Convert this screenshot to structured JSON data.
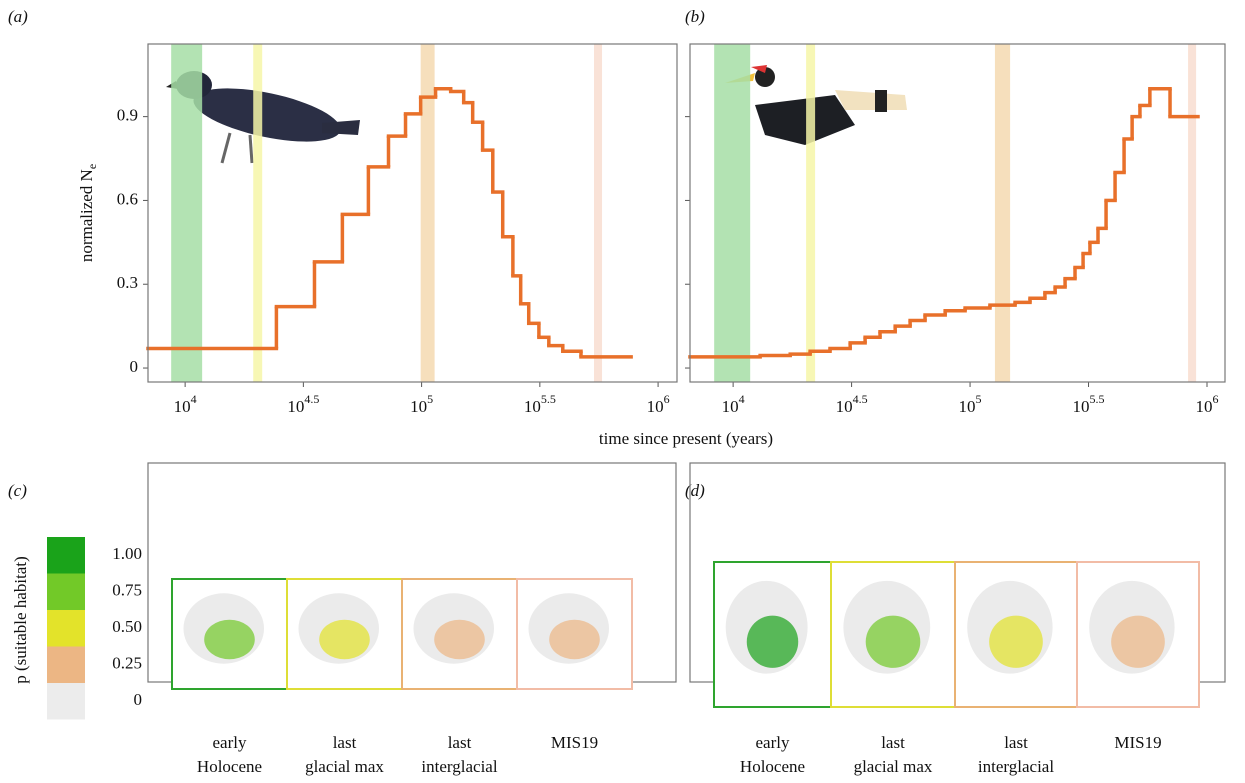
{
  "chart_data": [
    {
      "type": "line",
      "panel_label": "(a)",
      "ylabel": "normalized N_e",
      "xlabel": "time since present (years)",
      "log_x": true,
      "step": true,
      "xlim": [
        3.843,
        6.08
      ],
      "ylim": [
        -0.05,
        1.16
      ],
      "xticks": [
        {
          "value": 4,
          "label": "10^4"
        },
        {
          "value": 4.5,
          "label": "10^4.5"
        },
        {
          "value": 5,
          "label": "10^5"
        },
        {
          "value": 5.5,
          "label": "10^5.5"
        },
        {
          "value": 6,
          "label": "10^6"
        }
      ],
      "yticks": [
        0,
        0.3,
        0.6,
        0.9
      ],
      "bands": [
        {
          "x0": 3.941,
          "x1": 4.072,
          "color": "#a6dea6"
        },
        {
          "x0": 4.288,
          "x1": 4.326,
          "color": "#f6f6a8"
        },
        {
          "x0": 4.996,
          "x1": 5.055,
          "color": "#f4d9b0"
        },
        {
          "x0": 5.729,
          "x1": 5.763,
          "color": "#f8ddd0"
        }
      ],
      "x": [
        3.843,
        4.386,
        4.547,
        4.665,
        4.775,
        4.86,
        4.932,
        4.996,
        5.059,
        5.123,
        5.178,
        5.216,
        5.258,
        5.301,
        5.343,
        5.386,
        5.419,
        5.453,
        5.496,
        5.538,
        5.597,
        5.674,
        5.886
      ],
      "series": [
        {
          "color": "#e8702a",
          "values": [
            0.07,
            0.22,
            0.38,
            0.55,
            0.72,
            0.83,
            0.91,
            0.97,
            1.0,
            0.99,
            0.95,
            0.88,
            0.78,
            0.63,
            0.47,
            0.33,
            0.23,
            0.16,
            0.11,
            0.08,
            0.06,
            0.04,
            0.04
          ]
        }
      ]
    },
    {
      "type": "line",
      "panel_label": "(b)",
      "log_x": true,
      "step": true,
      "xlim": [
        3.818,
        6.076
      ],
      "ylim": [
        -0.05,
        1.16
      ],
      "xticks": [
        {
          "value": 4,
          "label": "10^4"
        },
        {
          "value": 4.5,
          "label": "10^4.5"
        },
        {
          "value": 5,
          "label": "10^5"
        },
        {
          "value": 5.5,
          "label": "10^5.5"
        },
        {
          "value": 6,
          "label": "10^6"
        }
      ],
      "bands": [
        {
          "x0": 3.92,
          "x1": 4.072,
          "color": "#a6dea6"
        },
        {
          "x0": 4.308,
          "x1": 4.346,
          "color": "#f6f6a8"
        },
        {
          "x0": 5.105,
          "x1": 5.169,
          "color": "#f4d9b0"
        },
        {
          "x0": 5.92,
          "x1": 5.954,
          "color": "#f8ddd0"
        }
      ],
      "x": [
        3.818,
        4.114,
        4.241,
        4.325,
        4.409,
        4.494,
        4.557,
        4.62,
        4.684,
        4.747,
        4.81,
        4.895,
        4.979,
        5.084,
        5.19,
        5.253,
        5.316,
        5.359,
        5.401,
        5.443,
        5.477,
        5.506,
        5.54,
        5.574,
        5.612,
        5.65,
        5.684,
        5.717,
        5.759,
        5.844,
        5.962
      ],
      "series": [
        {
          "color": "#e8702a",
          "values": [
            0.04,
            0.045,
            0.05,
            0.06,
            0.07,
            0.09,
            0.11,
            0.13,
            0.15,
            0.17,
            0.19,
            0.205,
            0.215,
            0.225,
            0.235,
            0.25,
            0.27,
            0.29,
            0.32,
            0.36,
            0.41,
            0.45,
            0.5,
            0.6,
            0.7,
            0.82,
            0.9,
            0.94,
            1.0,
            0.9,
            0.9
          ]
        }
      ]
    }
  ],
  "maps": {
    "legend": {
      "title": "p (suitable habitat)",
      "items": [
        {
          "label": "1.00",
          "color": "#1aa31a"
        },
        {
          "label": "0.75",
          "color": "#72c928"
        },
        {
          "label": "0.50",
          "color": "#e3e32a"
        },
        {
          "label": "0.25",
          "color": "#ecb684"
        },
        {
          "label": "0",
          "color": "#ececec"
        }
      ]
    },
    "panels": [
      {
        "panel_label": "(c)",
        "maps": [
          {
            "label_lines": [
              "early",
              "Holocene"
            ],
            "color": "#2ea42e"
          },
          {
            "label_lines": [
              "last",
              "glacial max"
            ],
            "color": "#dede36"
          },
          {
            "label_lines": [
              "last",
              "interglacial"
            ],
            "color": "#e9b273"
          },
          {
            "label_lines": [
              "MIS19"
            ],
            "color": "#f2bca6"
          }
        ]
      },
      {
        "panel_label": "(d)",
        "maps": [
          {
            "label_lines": [
              "early",
              "Holocene"
            ],
            "color": "#2ea42e"
          },
          {
            "label_lines": [
              "last",
              "glacial max"
            ],
            "color": "#dede36"
          },
          {
            "label_lines": [
              "last",
              "interglacial"
            ],
            "color": "#e9b273"
          },
          {
            "label_lines": [
              "MIS19"
            ],
            "color": "#f2bca6"
          }
        ]
      }
    ]
  }
}
